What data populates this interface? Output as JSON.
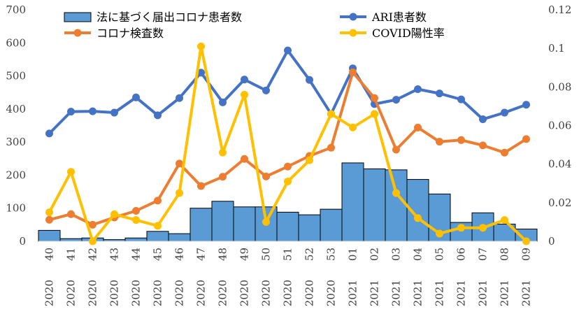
{
  "chart_data": {
    "type": "bar+line",
    "categories": [
      "40",
      "41",
      "42",
      "43",
      "44",
      "45",
      "46",
      "47",
      "48",
      "49",
      "50",
      "51",
      "52",
      "53",
      "01",
      "02",
      "03",
      "04",
      "05",
      "06",
      "07",
      "08",
      "09"
    ],
    "years": [
      "2020",
      "2020",
      "2020",
      "2020",
      "2020",
      "2020",
      "2020",
      "2020",
      "2020",
      "2020",
      "2020",
      "2020",
      "2020",
      "2020",
      "2021",
      "2021",
      "2021",
      "2021",
      "2021",
      "2021",
      "2021",
      "2021",
      "2021"
    ],
    "y_left": {
      "ylim": [
        0,
        700
      ],
      "ticks": [
        "0",
        "100",
        "200",
        "300",
        "400",
        "500",
        "600",
        "700"
      ]
    },
    "y_right": {
      "ylim": [
        0,
        0.12
      ],
      "ticks": [
        "0",
        "0.02",
        "0.04",
        "0.06",
        "0.08",
        "0.1",
        "0.12"
      ]
    },
    "legend": [
      "法に基づく届出コロナ患者数",
      "ARI患者数",
      "コロナ検査数",
      "COVID陽性率"
    ],
    "series": [
      {
        "name": "法に基づく届出コロナ患者数",
        "type": "bar",
        "axis": "left",
        "color": "#5b9bd5",
        "values": [
          33,
          8,
          10,
          5,
          10,
          30,
          23,
          100,
          121,
          104,
          104,
          88,
          80,
          97,
          237,
          219,
          216,
          187,
          143,
          57,
          86,
          52,
          37
        ]
      },
      {
        "name": "ARI患者数",
        "type": "line",
        "axis": "left",
        "color": "#4472c4",
        "values": [
          326,
          392,
          393,
          389,
          435,
          381,
          433,
          510,
          420,
          489,
          456,
          577,
          488,
          385,
          523,
          415,
          428,
          460,
          447,
          429,
          369,
          389,
          413
        ]
      },
      {
        "name": "コロナ検査数",
        "type": "line",
        "axis": "left",
        "color": "#ed7d31",
        "values": [
          65,
          82,
          50,
          72,
          92,
          123,
          235,
          167,
          195,
          249,
          196,
          226,
          258,
          283,
          511,
          433,
          277,
          344,
          301,
          306,
          290,
          268,
          309
        ]
      },
      {
        "name": "COVID陽性率",
        "type": "line",
        "axis": "right",
        "color": "#ffc000",
        "values": [
          0.015,
          0.036,
          0.0,
          0.014,
          0.011,
          0.008,
          0.025,
          0.101,
          0.046,
          0.076,
          0.01,
          0.031,
          0.042,
          0.066,
          0.059,
          0.066,
          0.025,
          0.012,
          0.004,
          0.007,
          0.007,
          0.011,
          0.0
        ]
      }
    ]
  }
}
